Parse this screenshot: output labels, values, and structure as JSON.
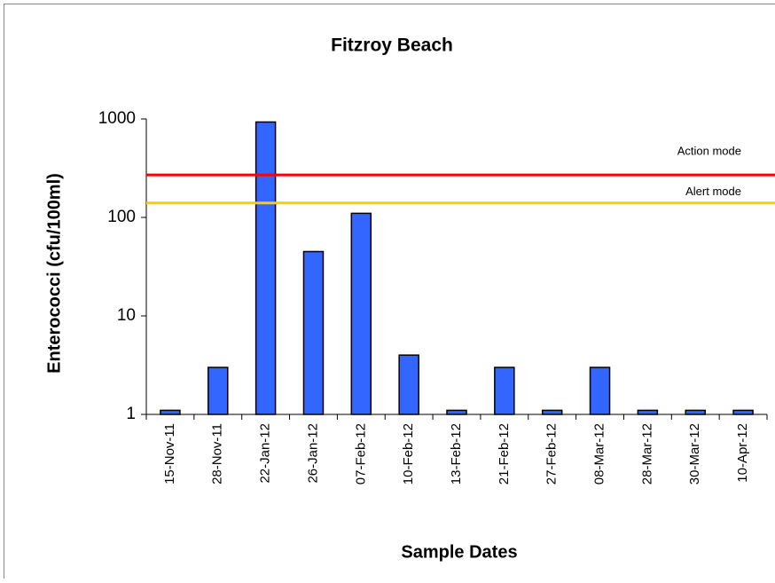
{
  "chart_data": {
    "type": "bar",
    "title": "Fitzroy  Beach",
    "x_label": "Sample Dates",
    "y_label": "Enterococci (cfu/100ml)",
    "categories": [
      "15-Nov-11",
      "28-Nov-11",
      "22-Jan-12",
      "26-Jan-12",
      "07-Feb-12",
      "10-Feb-12",
      "13-Feb-12",
      "21-Feb-12",
      "27-Feb-12",
      "08-Mar-12",
      "28-Mar-12",
      "30-Mar-12",
      "10-Apr-12"
    ],
    "values": [
      1.1,
      3,
      930,
      45,
      110,
      4,
      1.1,
      3,
      1.1,
      3,
      1.1,
      1.1,
      1.1
    ],
    "color": "#3366ff",
    "ylim": [
      1,
      1000
    ],
    "yticks": [
      1,
      10,
      100,
      1000
    ],
    "y_scale": "log",
    "grid": false,
    "reference_lines": [
      {
        "name": "Action mode",
        "value": 270,
        "color": "#ff0000"
      },
      {
        "name": "Alert mode",
        "value": 140,
        "color": "#ffcc00"
      }
    ]
  }
}
